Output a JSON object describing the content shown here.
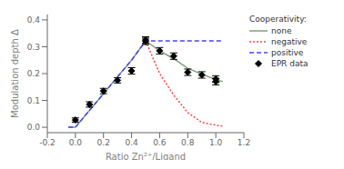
{
  "chart_data": {
    "type": "line",
    "xlabel": "Ratio Zn²⁺/Ligand",
    "ylabel": "Modulation depth Δ",
    "xlim": [
      -0.2,
      1.2
    ],
    "ylim": [
      -0.02,
      0.42
    ],
    "xticks": [
      -0.2,
      {
        "value": 0.0,
        "label": "0.0"
      },
      0.2,
      0.4,
      0.6,
      0.8,
      {
        "value": 1.0,
        "label": "1.0"
      },
      1.2
    ],
    "yticks": [
      {
        "value": 0.0,
        "label": "0.0"
      },
      0.1,
      0.2,
      0.3,
      0.4
    ],
    "grid": false,
    "legend": "upper right",
    "legend_title": "Cooperativity:",
    "series": [
      {
        "name": "none",
        "type": "line",
        "color": "#7f9f7f",
        "line_style": "solid",
        "x": [
          -0.05,
          0.0,
          0.1,
          0.2,
          0.3,
          0.4,
          0.5,
          0.6,
          0.7,
          0.8,
          0.9,
          1.0,
          1.05
        ],
        "values": [
          0.0,
          0.0,
          0.063,
          0.125,
          0.188,
          0.25,
          0.322,
          0.285,
          0.255,
          0.22,
          0.198,
          0.178,
          0.17
        ]
      },
      {
        "name": "negative",
        "type": "line",
        "color": "#ff4444",
        "line_style": "dotted",
        "x": [
          0.5,
          0.6,
          0.7,
          0.8,
          0.9,
          1.0,
          1.05
        ],
        "values": [
          0.322,
          0.2,
          0.12,
          0.055,
          0.018,
          0.008,
          0.004
        ]
      },
      {
        "name": "positive",
        "type": "line",
        "color": "#4444ff",
        "line_style": "dashed",
        "x": [
          -0.05,
          0.0,
          0.1,
          0.2,
          0.3,
          0.4,
          0.5,
          0.55,
          0.6,
          0.7,
          0.8,
          0.9,
          1.0,
          1.05
        ],
        "values": [
          0.0,
          0.0,
          0.063,
          0.125,
          0.188,
          0.25,
          0.322,
          0.322,
          0.322,
          0.322,
          0.322,
          0.322,
          0.322,
          0.322
        ]
      },
      {
        "name": "EPR data",
        "type": "scatter",
        "marker": "diamond",
        "color": "black",
        "x": [
          0.0,
          0.1,
          0.2,
          0.3,
          0.4,
          0.5,
          0.5,
          0.6,
          0.7,
          0.8,
          0.9,
          1.0,
          1.0
        ],
        "values": [
          0.027,
          0.085,
          0.135,
          0.175,
          0.21,
          0.32,
          0.325,
          0.285,
          0.265,
          0.205,
          0.195,
          0.18,
          0.17
        ],
        "error": [
          0.008,
          0.01,
          0.01,
          0.01,
          0.012,
          0.012,
          0.012,
          0.012,
          0.012,
          0.012,
          0.012,
          0.012,
          0.012
        ]
      }
    ]
  }
}
